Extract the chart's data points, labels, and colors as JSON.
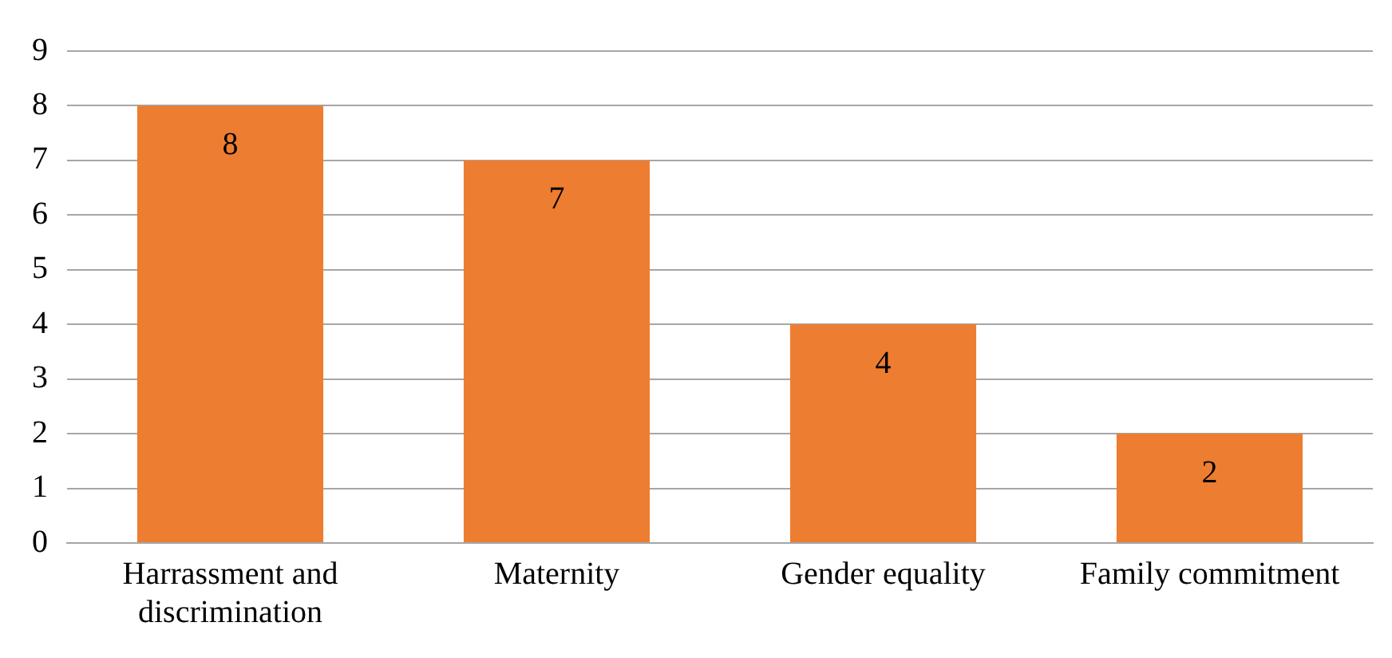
{
  "chart_data": {
    "type": "bar",
    "categories": [
      "Harrassment and discrimination",
      "Maternity",
      "Gender equality",
      "Family commitment"
    ],
    "values": [
      8,
      7,
      4,
      2
    ],
    "color": "#ed7d31",
    "ylim": [
      0,
      9
    ],
    "yticks": [
      0,
      1,
      2,
      3,
      4,
      5,
      6,
      7,
      8,
      9
    ],
    "grid": "y",
    "data_labels": true
  }
}
